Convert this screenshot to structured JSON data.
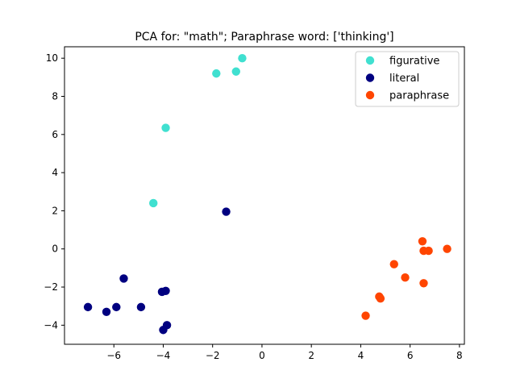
{
  "chart_data": {
    "type": "scatter",
    "title": "PCA for: \"math\"; Paraphrase word: ['thinking']",
    "xlabel": "",
    "ylabel": "",
    "xlim": [
      -8.0,
      8.2
    ],
    "ylim": [
      -5.0,
      10.6
    ],
    "xticks": [
      -6,
      -4,
      -2,
      0,
      2,
      4,
      6,
      8
    ],
    "yticks": [
      -4,
      -2,
      0,
      2,
      4,
      6,
      8,
      10
    ],
    "grid": false,
    "legend_position": "top-right",
    "series": [
      {
        "name": "figurative",
        "color": "#40e0d0",
        "points": [
          {
            "x": -0.8,
            "y": 10.0
          },
          {
            "x": -1.05,
            "y": 9.3
          },
          {
            "x": -1.85,
            "y": 9.2
          },
          {
            "x": -3.9,
            "y": 6.35
          },
          {
            "x": -4.4,
            "y": 2.4
          }
        ]
      },
      {
        "name": "literal",
        "color": "#000080",
        "points": [
          {
            "x": -1.45,
            "y": 1.95
          },
          {
            "x": -5.6,
            "y": -1.55
          },
          {
            "x": -4.05,
            "y": -2.25
          },
          {
            "x": -3.9,
            "y": -2.2
          },
          {
            "x": -7.05,
            "y": -3.05
          },
          {
            "x": -5.9,
            "y": -3.05
          },
          {
            "x": -4.9,
            "y": -3.05
          },
          {
            "x": -6.3,
            "y": -3.3
          },
          {
            "x": -3.85,
            "y": -4.0
          },
          {
            "x": -4.0,
            "y": -4.25
          }
        ]
      },
      {
        "name": "paraphrase",
        "color": "#ff4500",
        "points": [
          {
            "x": 6.5,
            "y": 0.4
          },
          {
            "x": 6.55,
            "y": -0.1
          },
          {
            "x": 6.75,
            "y": -0.1
          },
          {
            "x": 7.5,
            "y": 0.0
          },
          {
            "x": 5.35,
            "y": -0.8
          },
          {
            "x": 5.8,
            "y": -1.5
          },
          {
            "x": 6.55,
            "y": -1.8
          },
          {
            "x": 4.75,
            "y": -2.5
          },
          {
            "x": 4.8,
            "y": -2.6
          },
          {
            "x": 4.2,
            "y": -3.5
          }
        ]
      }
    ]
  }
}
